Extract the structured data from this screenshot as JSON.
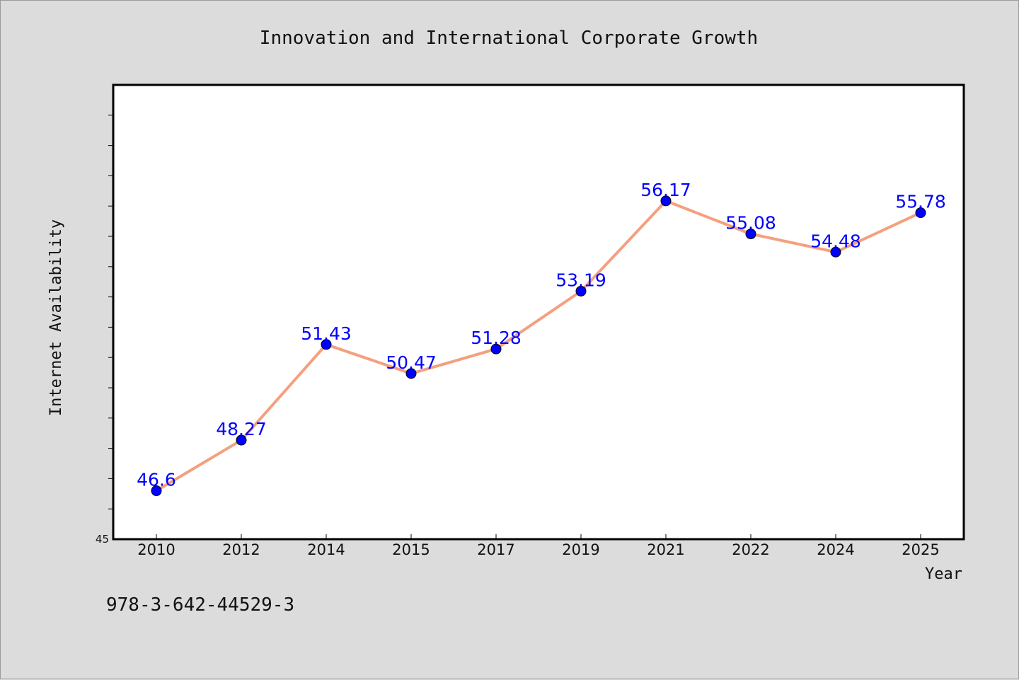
{
  "chart_data": {
    "type": "line",
    "title": "Innovation and International Corporate Growth",
    "xlabel": "Year",
    "ylabel": "Internet Availability",
    "categories": [
      "2010",
      "2012",
      "2014",
      "2015",
      "2017",
      "2019",
      "2021",
      "2022",
      "2024",
      "2025"
    ],
    "series": [
      {
        "values": [
          46.6,
          48.27,
          51.43,
          50.47,
          51.28,
          53.19,
          56.17,
          55.08,
          54.48,
          55.78
        ],
        "labels": [
          "46.6",
          "48.27",
          "51.43",
          "50.47",
          "51.28",
          "53.19",
          "56.17",
          "55.08",
          "54.48",
          "55.78"
        ],
        "line_color": "#f4a07f",
        "marker_color": "#0000ff"
      }
    ],
    "ylim": [
      45,
      60
    ],
    "yticks_labeled": [
      "45"
    ],
    "grid": false,
    "legend": "none"
  },
  "footer": {
    "isbn": "978-3-642-44529-3"
  },
  "colors": {
    "background": "#dcdcdc",
    "plot_background": "#ffffff",
    "data_label": "#0000ff"
  }
}
